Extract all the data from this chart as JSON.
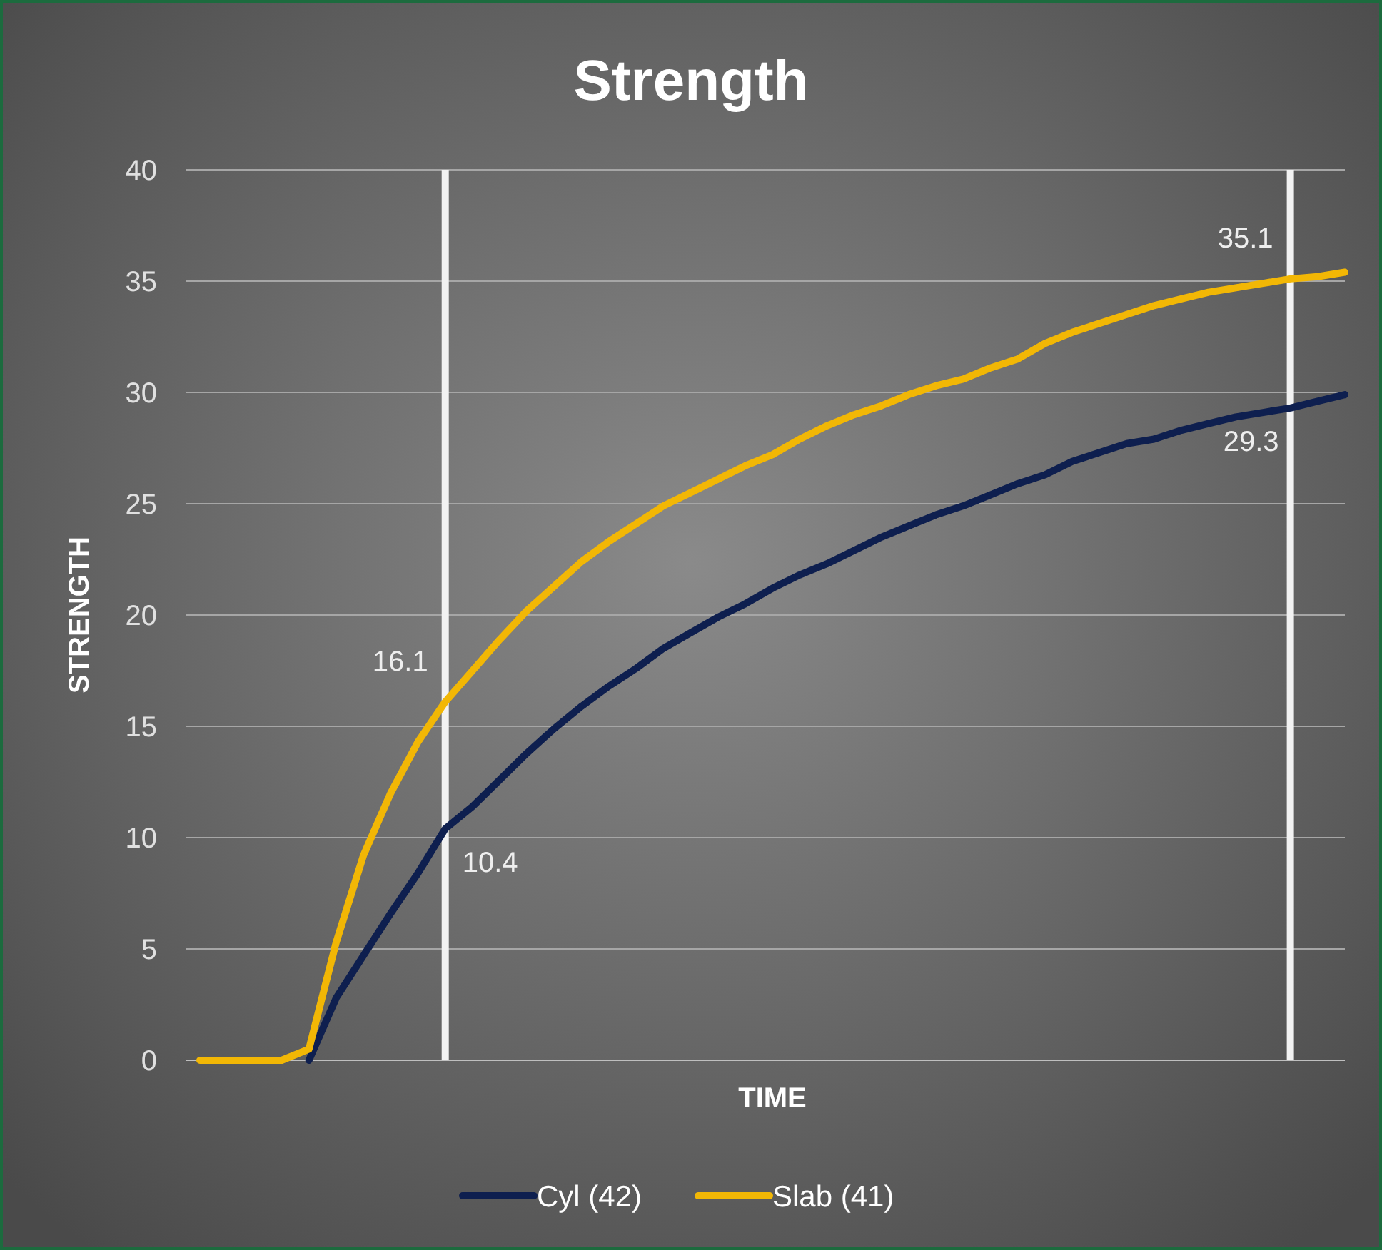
{
  "chart_data": {
    "type": "line",
    "title": "Strength",
    "xlabel": "TIME",
    "ylabel": "STRENGTH",
    "categories": [
      null,
      null,
      null,
      null,
      null,
      null,
      null,
      null,
      null,
      null,
      null,
      null,
      null,
      null,
      null,
      null,
      null,
      null,
      null,
      null,
      null,
      null,
      null,
      null,
      null,
      null,
      null,
      null,
      null,
      null,
      null,
      null,
      null,
      null,
      null,
      null,
      null,
      null,
      null,
      null,
      null,
      null,
      null
    ],
    "series": [
      {
        "name": "Cyl (42)",
        "color": "#0e1f4f",
        "values": [
          null,
          null,
          null,
          null,
          0,
          2.8,
          4.7,
          6.6,
          8.4,
          10.4,
          11.4,
          12.6,
          13.8,
          14.9,
          15.9,
          16.8,
          17.6,
          18.5,
          19.2,
          19.9,
          20.5,
          21.2,
          21.8,
          22.3,
          22.9,
          23.5,
          24.0,
          24.5,
          24.9,
          25.4,
          25.9,
          26.3,
          26.9,
          27.3,
          27.7,
          27.9,
          28.3,
          28.6,
          28.9,
          29.1,
          29.3,
          29.6,
          29.9
        ],
        "value_labels": [
          null,
          null,
          null,
          null,
          null,
          null,
          null,
          null,
          null,
          "10.4",
          null,
          null,
          null,
          null,
          null,
          null,
          null,
          null,
          null,
          null,
          null,
          null,
          null,
          null,
          null,
          null,
          null,
          null,
          null,
          null,
          null,
          null,
          null,
          null,
          null,
          null,
          null,
          null,
          null,
          null,
          "29.3",
          null,
          null
        ]
      },
      {
        "name": "Slab (41)",
        "color": "#f2b705",
        "values": [
          0,
          0,
          0,
          0,
          0.5,
          5.3,
          9.2,
          12,
          14.3,
          16.1,
          17.5,
          18.9,
          20.2,
          21.3,
          22.4,
          23.3,
          24.1,
          24.9,
          25.5,
          26.1,
          26.7,
          27.2,
          27.9,
          28.5,
          29.0,
          29.4,
          29.9,
          30.3,
          30.6,
          31.1,
          31.5,
          32.2,
          32.7,
          33.1,
          33.5,
          33.9,
          34.2,
          34.5,
          34.7,
          34.9,
          35.1,
          35.2,
          35.4
        ],
        "value_labels": [
          null,
          null,
          null,
          null,
          null,
          null,
          null,
          null,
          null,
          "16.1",
          null,
          null,
          null,
          null,
          null,
          null,
          null,
          null,
          null,
          null,
          null,
          null,
          null,
          null,
          null,
          null,
          null,
          null,
          null,
          null,
          null,
          null,
          null,
          null,
          null,
          null,
          null,
          null,
          null,
          null,
          "35.1",
          null,
          null
        ]
      }
    ],
    "ylim": [
      0,
      40
    ],
    "yticks": [
      0,
      5,
      10,
      15,
      20,
      25,
      30,
      35,
      40
    ],
    "grid": "y",
    "legend": "bottom",
    "marker": "none",
    "line_style": "solid"
  }
}
